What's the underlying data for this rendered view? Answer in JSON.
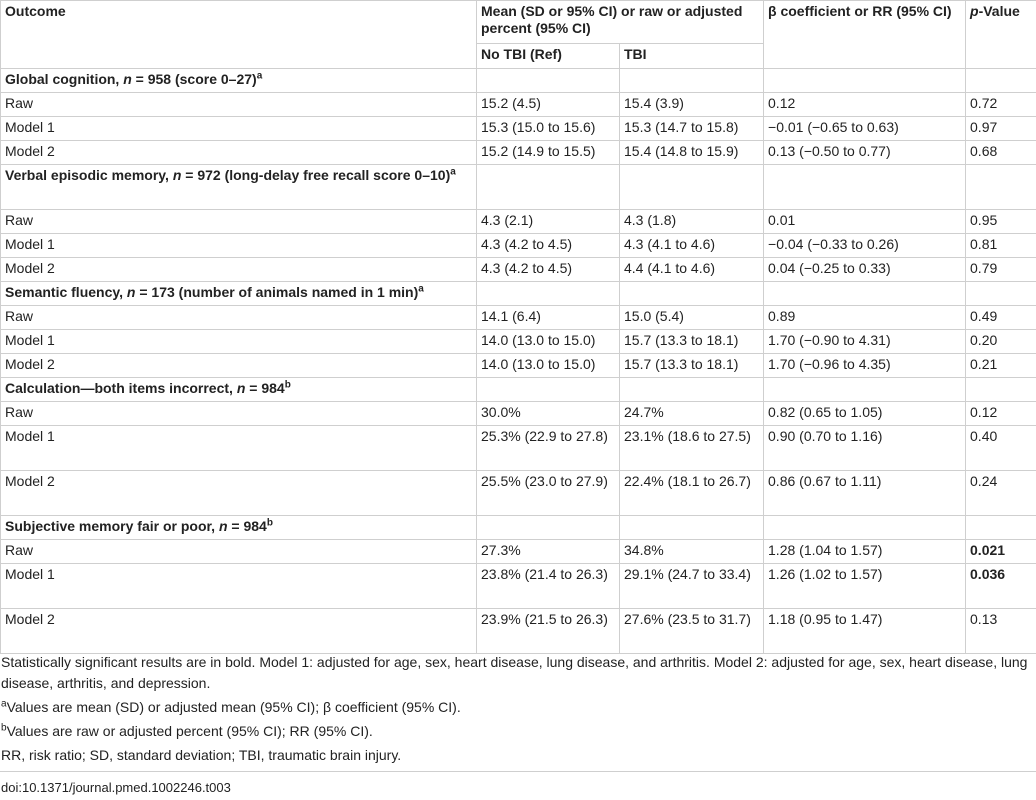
{
  "headers": {
    "outcome": "Outcome",
    "mean_group": "Mean (SD or 95% CI) or raw or adjusted percent (95% CI)",
    "beta": "β coefficient or RR (95% CI)",
    "pvalue_italic": "p",
    "pvalue_rest": "-Value",
    "no_tbi": "No TBI (Ref)",
    "tbi": "TBI"
  },
  "sections": [
    {
      "title_pre": "Global cognition, ",
      "title_n": "n",
      "title_post": " = 958 (score 0–27)",
      "marker": "a",
      "rows": [
        {
          "label": "Raw",
          "no_tbi": "15.2 (4.5)",
          "tbi": "15.4 (3.9)",
          "beta": "0.12",
          "p": "0.72",
          "sig": false
        },
        {
          "label": "Model 1",
          "no_tbi": "15.3 (15.0 to 15.6)",
          "tbi": "15.3 (14.7 to 15.8)",
          "beta": "−0.01 (−0.65 to 0.63)",
          "p": "0.97",
          "sig": false
        },
        {
          "label": "Model 2",
          "no_tbi": "15.2 (14.9 to 15.5)",
          "tbi": "15.4 (14.8 to 15.9)",
          "beta": "0.13 (−0.50 to 0.77)",
          "p": "0.68",
          "sig": false
        }
      ]
    },
    {
      "title_pre": "Verbal episodic memory, ",
      "title_n": "n",
      "title_post": " = 972 (long-delay free recall score 0–10)",
      "marker": "a",
      "tall": true,
      "rows": [
        {
          "label": "Raw",
          "no_tbi": "4.3 (2.1)",
          "tbi": "4.3 (1.8)",
          "beta": "0.01",
          "p": "0.95",
          "sig": false
        },
        {
          "label": "Model 1",
          "no_tbi": "4.3 (4.2 to 4.5)",
          "tbi": "4.3 (4.1 to 4.6)",
          "beta": "−0.04 (−0.33 to 0.26)",
          "p": "0.81",
          "sig": false
        },
        {
          "label": "Model 2",
          "no_tbi": "4.3 (4.2 to 4.5)",
          "tbi": "4.4 (4.1 to 4.6)",
          "beta": "0.04 (−0.25 to 0.33)",
          "p": "0.79",
          "sig": false
        }
      ]
    },
    {
      "title_pre": "Semantic fluency, ",
      "title_n": "n",
      "title_post": " = 173 (number of animals named in 1 min)",
      "marker": "a",
      "rows": [
        {
          "label": "Raw",
          "no_tbi": "14.1 (6.4)",
          "tbi": "15.0 (5.4)",
          "beta": "0.89",
          "p": "0.49",
          "sig": false
        },
        {
          "label": "Model 1",
          "no_tbi": "14.0 (13.0 to 15.0)",
          "tbi": "15.7 (13.3 to 18.1)",
          "beta": "1.70 (−0.90 to 4.31)",
          "p": "0.20",
          "sig": false
        },
        {
          "label": "Model 2",
          "no_tbi": "14.0 (13.0 to 15.0)",
          "tbi": "15.7 (13.3 to 18.1)",
          "beta": "1.70 (−0.96 to 4.35)",
          "p": "0.21",
          "sig": false
        }
      ]
    },
    {
      "title_pre": "Calculation—both items incorrect, ",
      "title_n": "n",
      "title_post": " = 984",
      "marker": "b",
      "rows": [
        {
          "label": "Raw",
          "no_tbi": "30.0%",
          "tbi": "24.7%",
          "beta": "0.82 (0.65 to 1.05)",
          "p": "0.12",
          "sig": false
        },
        {
          "label": "Model 1",
          "no_tbi": "25.3% (22.9 to 27.8)",
          "tbi": "23.1% (18.6 to 27.5)",
          "beta": "0.90 (0.70 to 1.16)",
          "p": "0.40",
          "sig": false,
          "tall": true
        },
        {
          "label": "Model 2",
          "no_tbi": "25.5% (23.0 to 27.9)",
          "tbi": "22.4% (18.1 to 26.7)",
          "beta": "0.86 (0.67 to 1.11)",
          "p": "0.24",
          "sig": false,
          "tall": true
        }
      ]
    },
    {
      "title_pre": "Subjective memory fair or poor, ",
      "title_n": "n",
      "title_post": " = 984",
      "marker": "b",
      "rows": [
        {
          "label": "Raw",
          "no_tbi": "27.3%",
          "tbi": "34.8%",
          "beta": "1.28 (1.04 to 1.57)",
          "p": "0.021",
          "sig": true
        },
        {
          "label": "Model 1",
          "no_tbi": "23.8% (21.4 to 26.3)",
          "tbi": "29.1% (24.7 to 33.4)",
          "beta": "1.26 (1.02 to 1.57)",
          "p": "0.036",
          "sig": true,
          "tall": true
        },
        {
          "label": "Model 2",
          "no_tbi": "23.9% (21.5 to 26.3)",
          "tbi": "27.6% (23.5 to 31.7)",
          "beta": "1.18 (0.95 to 1.47)",
          "p": "0.13",
          "sig": false,
          "tall": true
        }
      ]
    }
  ],
  "notes": {
    "main": "Statistically significant results are in bold. Model 1: adjusted for age, sex, heart disease, lung disease, and arthritis. Model 2: adjusted for age, sex, heart disease, lung disease, arthritis, and depression.",
    "fn_a_marker": "a",
    "fn_a": "Values are mean (SD) or adjusted mean (95% CI); β coefficient (95% CI).",
    "fn_b_marker": "b",
    "fn_b": "Values are raw or adjusted percent (95% CI); RR (95% CI).",
    "abbrev": "RR, risk ratio; SD, standard deviation; TBI, traumatic brain injury."
  },
  "doi": "doi:10.1371/journal.pmed.1002246.t003"
}
